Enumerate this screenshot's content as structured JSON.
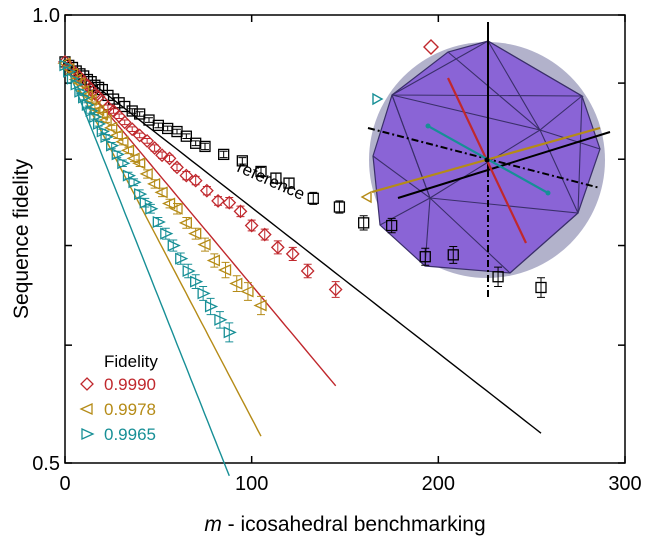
{
  "chart_data": {
    "type": "scatter",
    "xlabel_var": "m",
    "xlabel_rest": " - icosahedral benchmarking",
    "ylabel": "Sequence fidelity",
    "xlim": [
      0,
      300
    ],
    "ylim": [
      0.5,
      1.0
    ],
    "y_scale": "log",
    "x_ticks": [
      {
        "value": 0,
        "label": "0"
      },
      {
        "value": 100,
        "label": "100"
      },
      {
        "value": 200,
        "label": "200"
      },
      {
        "value": 300,
        "label": "300"
      }
    ],
    "y_ticks": [
      {
        "value": 1.0,
        "label": "1.0"
      },
      {
        "value": 0.5,
        "label": "0.5"
      }
    ],
    "legend_title": "Fidelity",
    "annotation": "reference",
    "series": [
      {
        "name": "reference",
        "label": "",
        "marker": "square",
        "color": "#000000",
        "A": 0.93,
        "p": 0.99775,
        "x": [
          0,
          2,
          4,
          6,
          8,
          10,
          12,
          14,
          16,
          18,
          20,
          23,
          26,
          29,
          32,
          36,
          40,
          45,
          50,
          55,
          60,
          65,
          70,
          75,
          85,
          95,
          105,
          113,
          120,
          133,
          147,
          160,
          175,
          193,
          208,
          232,
          255
        ],
        "y": [
          0.93,
          0.925,
          0.922,
          0.917,
          0.913,
          0.91,
          0.905,
          0.902,
          0.897,
          0.894,
          0.891,
          0.883,
          0.878,
          0.873,
          0.868,
          0.862,
          0.858,
          0.85,
          0.843,
          0.839,
          0.835,
          0.829,
          0.82,
          0.816,
          0.806,
          0.798,
          0.785,
          0.777,
          0.771,
          0.753,
          0.743,
          0.725,
          0.722,
          0.688,
          0.69,
          0.667,
          0.656
        ],
        "err": [
          0.002,
          0.002,
          0.002,
          0.002,
          0.002,
          0.002,
          0.002,
          0.002,
          0.002,
          0.002,
          0.002,
          0.002,
          0.002,
          0.002,
          0.002,
          0.003,
          0.003,
          0.003,
          0.003,
          0.003,
          0.003,
          0.003,
          0.003,
          0.004,
          0.004,
          0.004,
          0.005,
          0.006,
          0.006,
          0.007,
          0.007,
          0.008,
          0.008,
          0.009,
          0.009,
          0.01,
          0.01
        ]
      },
      {
        "name": "0.9990",
        "label": "0.9990",
        "marker": "diamond",
        "color": "#c0282d",
        "A": 0.93,
        "p": 0.99655,
        "x": [
          0,
          2,
          4,
          6,
          8,
          10,
          12,
          14,
          16,
          18,
          20,
          23,
          26,
          29,
          32,
          36,
          40,
          44,
          48,
          52,
          56,
          60,
          65,
          70,
          76,
          82,
          88,
          94,
          100,
          107,
          114,
          122,
          130,
          145
        ],
        "y": [
          0.93,
          0.923,
          0.918,
          0.913,
          0.908,
          0.901,
          0.897,
          0.891,
          0.885,
          0.881,
          0.875,
          0.867,
          0.862,
          0.855,
          0.847,
          0.838,
          0.83,
          0.823,
          0.814,
          0.805,
          0.801,
          0.79,
          0.78,
          0.774,
          0.762,
          0.75,
          0.748,
          0.738,
          0.722,
          0.712,
          0.698,
          0.691,
          0.673,
          0.654
        ],
        "err": [
          0.002,
          0.002,
          0.002,
          0.002,
          0.002,
          0.002,
          0.002,
          0.002,
          0.002,
          0.002,
          0.002,
          0.003,
          0.003,
          0.003,
          0.003,
          0.003,
          0.003,
          0.003,
          0.004,
          0.004,
          0.004,
          0.004,
          0.005,
          0.005,
          0.005,
          0.005,
          0.006,
          0.006,
          0.006,
          0.006,
          0.007,
          0.007,
          0.007,
          0.008
        ]
      },
      {
        "name": "0.9978",
        "label": "0.9978",
        "marker": "triangle-left",
        "color": "#b58b17",
        "A": 0.93,
        "p": 0.9945,
        "x": [
          0,
          2,
          4,
          6,
          8,
          10,
          12,
          14,
          16,
          18,
          20,
          22,
          25,
          28,
          31,
          34,
          37,
          40,
          44,
          48,
          52,
          56,
          60,
          65,
          70,
          75,
          80,
          86,
          92,
          98,
          105
        ],
        "y": [
          0.928,
          0.92,
          0.913,
          0.905,
          0.9,
          0.889,
          0.883,
          0.877,
          0.868,
          0.863,
          0.857,
          0.85,
          0.84,
          0.83,
          0.822,
          0.811,
          0.801,
          0.795,
          0.782,
          0.77,
          0.76,
          0.747,
          0.741,
          0.725,
          0.713,
          0.701,
          0.684,
          0.674,
          0.66,
          0.652,
          0.638
        ],
        "err": [
          0.002,
          0.002,
          0.002,
          0.002,
          0.002,
          0.002,
          0.002,
          0.003,
          0.003,
          0.003,
          0.003,
          0.003,
          0.003,
          0.004,
          0.004,
          0.004,
          0.004,
          0.004,
          0.005,
          0.005,
          0.005,
          0.005,
          0.006,
          0.006,
          0.006,
          0.007,
          0.007,
          0.008,
          0.008,
          0.009,
          0.009
        ]
      },
      {
        "name": "0.9965",
        "label": "0.9965",
        "marker": "triangle-right",
        "color": "#178f96",
        "A": 0.93,
        "p": 0.99275,
        "x": [
          0,
          2,
          4,
          6,
          8,
          10,
          12,
          14,
          16,
          18,
          20,
          22,
          25,
          28,
          31,
          34,
          37,
          40,
          43,
          46,
          50,
          54,
          58,
          62,
          66,
          70,
          74,
          78,
          83,
          88
        ],
        "y": [
          0.925,
          0.916,
          0.906,
          0.898,
          0.888,
          0.88,
          0.87,
          0.862,
          0.854,
          0.845,
          0.835,
          0.828,
          0.817,
          0.806,
          0.795,
          0.78,
          0.772,
          0.758,
          0.748,
          0.741,
          0.726,
          0.713,
          0.7,
          0.686,
          0.673,
          0.662,
          0.65,
          0.637,
          0.624,
          0.612
        ],
        "err": [
          0.002,
          0.002,
          0.002,
          0.002,
          0.003,
          0.003,
          0.003,
          0.003,
          0.003,
          0.003,
          0.003,
          0.003,
          0.004,
          0.004,
          0.004,
          0.004,
          0.004,
          0.005,
          0.005,
          0.005,
          0.005,
          0.006,
          0.006,
          0.006,
          0.007,
          0.007,
          0.007,
          0.008,
          0.008,
          0.009
        ]
      }
    ]
  },
  "inset": {
    "sphere_color": "#a4a4c2",
    "icosahedron_color": "#8a64d6",
    "axis_colors": {
      "reference": "#000000",
      "0.9990": "#c0282d",
      "0.9978": "#b58b17",
      "0.9965": "#178f96"
    }
  }
}
